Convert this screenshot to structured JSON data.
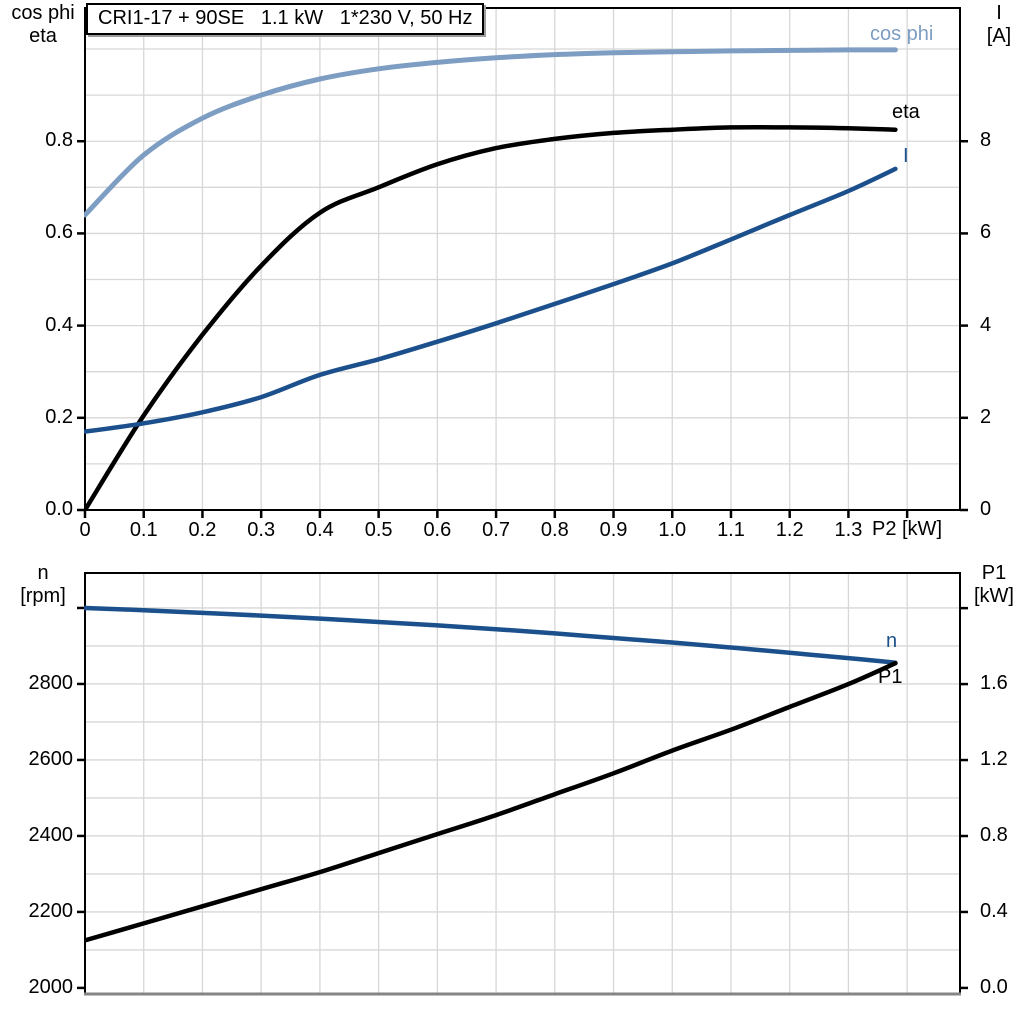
{
  "title_box": {
    "text": "CRI1-17 + 90SE   1.1 kW   1*230 V, 50 Hz"
  },
  "colors": {
    "light_blue": "#7d9dc3",
    "dark_blue": "#1b508c",
    "black": "#000000",
    "grid": "#d7d7d7",
    "frame": "#000000",
    "bottom_edge_gray": "#858585",
    "shadow_gray": "#9c9c9c"
  },
  "labels": {
    "top": {
      "left_axis_line1": "cos phi",
      "left_axis_line2": "eta",
      "right_axis_line1": "I",
      "right_axis_line2": "[A]",
      "x_axis": "P2 [kW]",
      "curve_cos_phi": "cos phi",
      "curve_eta": "eta",
      "curve_i": "I"
    },
    "bottom": {
      "left_axis_line1": "n",
      "left_axis_line2": "[rpm]",
      "right_axis_line1": "P1",
      "right_axis_line2": "[kW]",
      "curve_n": "n",
      "curve_p1": "P1"
    }
  },
  "chart_data": [
    {
      "type": "line",
      "title": "CRI1-17 + 90SE   1.1 kW   1*230 V, 50 Hz",
      "xlabel": "P2 [kW]",
      "ylabel_left": "cos phi / eta",
      "ylabel_right": "I [A]",
      "grid": true,
      "xlim": [
        0,
        1.49
      ],
      "ylim_left": [
        0,
        1.089
      ],
      "ylim_right": [
        0,
        10.89
      ],
      "x_ticks": {
        "values": [
          0,
          0.1,
          0.2,
          0.3,
          0.4,
          0.5,
          0.6,
          0.7,
          0.8,
          0.9,
          1.0,
          1.1,
          1.2,
          1.3,
          1.4
        ],
        "labels": [
          "0",
          "0.1",
          "0.2",
          "0.3",
          "0.4",
          "0.5",
          "0.6",
          "0.7",
          "0.8",
          "0.9",
          "1.0",
          "1.1",
          "1.2",
          "1.3",
          ""
        ]
      },
      "y_ticks_left": {
        "values": [
          0,
          0.2,
          0.4,
          0.6,
          0.8
        ],
        "labels": [
          "0.0",
          "0.2",
          "0.4",
          "0.6",
          "0.8"
        ]
      },
      "y_ticks_right": {
        "values": [
          0,
          2,
          4,
          6,
          8
        ],
        "labels": [
          "0",
          "2",
          "4",
          "6",
          "8"
        ]
      },
      "x": [
        0,
        0.1,
        0.2,
        0.3,
        0.4,
        0.5,
        0.6,
        0.7,
        0.8,
        0.9,
        1.0,
        1.1,
        1.2,
        1.3,
        1.38
      ],
      "series": [
        {
          "name": "cos phi",
          "axis": "left",
          "color": "#7d9dc3",
          "width": 5,
          "values": [
            0.64,
            0.77,
            0.85,
            0.9,
            0.935,
            0.957,
            0.971,
            0.981,
            0.988,
            0.992,
            0.994,
            0.996,
            0.997,
            0.998,
            0.998
          ]
        },
        {
          "name": "eta",
          "axis": "left",
          "color": "#000000",
          "width": 4.5,
          "values": [
            0,
            0.205,
            0.38,
            0.53,
            0.645,
            0.7,
            0.75,
            0.785,
            0.805,
            0.818,
            0.825,
            0.83,
            0.83,
            0.828,
            0.825
          ]
        },
        {
          "name": "I",
          "axis": "right",
          "color": "#1b508c",
          "width": 4.5,
          "values": [
            1.7,
            1.88,
            2.12,
            2.45,
            2.93,
            3.27,
            3.65,
            4.05,
            4.47,
            4.9,
            5.35,
            5.87,
            6.4,
            6.92,
            7.4
          ]
        }
      ]
    },
    {
      "type": "line",
      "title": "",
      "xlabel": "",
      "ylabel_left": "n [rpm]",
      "ylabel_right": "P1 [kW]",
      "grid": true,
      "xlim": [
        0,
        1.49
      ],
      "ylim_left": [
        1984,
        3092
      ],
      "ylim_right": [
        -0.032,
        2.185
      ],
      "x_ticks": {
        "values": [],
        "labels": []
      },
      "y_ticks_left": {
        "values": [
          2000,
          2200,
          2400,
          2600,
          2800,
          3000
        ],
        "labels": [
          "2000",
          "2200",
          "2400",
          "2600",
          "2800",
          ""
        ]
      },
      "y_ticks_right": {
        "values": [
          0,
          0.4,
          0.8,
          1.2,
          1.6,
          2.0
        ],
        "labels": [
          "0.0",
          "0.4",
          "0.8",
          "1.2",
          "1.6",
          ""
        ]
      },
      "x": [
        0,
        0.1,
        0.2,
        0.3,
        0.4,
        0.5,
        0.6,
        0.7,
        0.8,
        0.9,
        1.0,
        1.1,
        1.2,
        1.3,
        1.38
      ],
      "series": [
        {
          "name": "n",
          "axis": "left",
          "color": "#1b508c",
          "width": 4.5,
          "values": [
            3000,
            2994,
            2987,
            2980,
            2972,
            2963,
            2954,
            2944,
            2933,
            2921,
            2909,
            2896,
            2882,
            2868,
            2856
          ]
        },
        {
          "name": "P1",
          "axis": "right",
          "color": "#000000",
          "width": 4.5,
          "values": [
            0.25,
            0.34,
            0.43,
            0.52,
            0.61,
            0.71,
            0.81,
            0.91,
            1.02,
            1.13,
            1.25,
            1.36,
            1.48,
            1.6,
            1.71
          ]
        }
      ]
    }
  ]
}
